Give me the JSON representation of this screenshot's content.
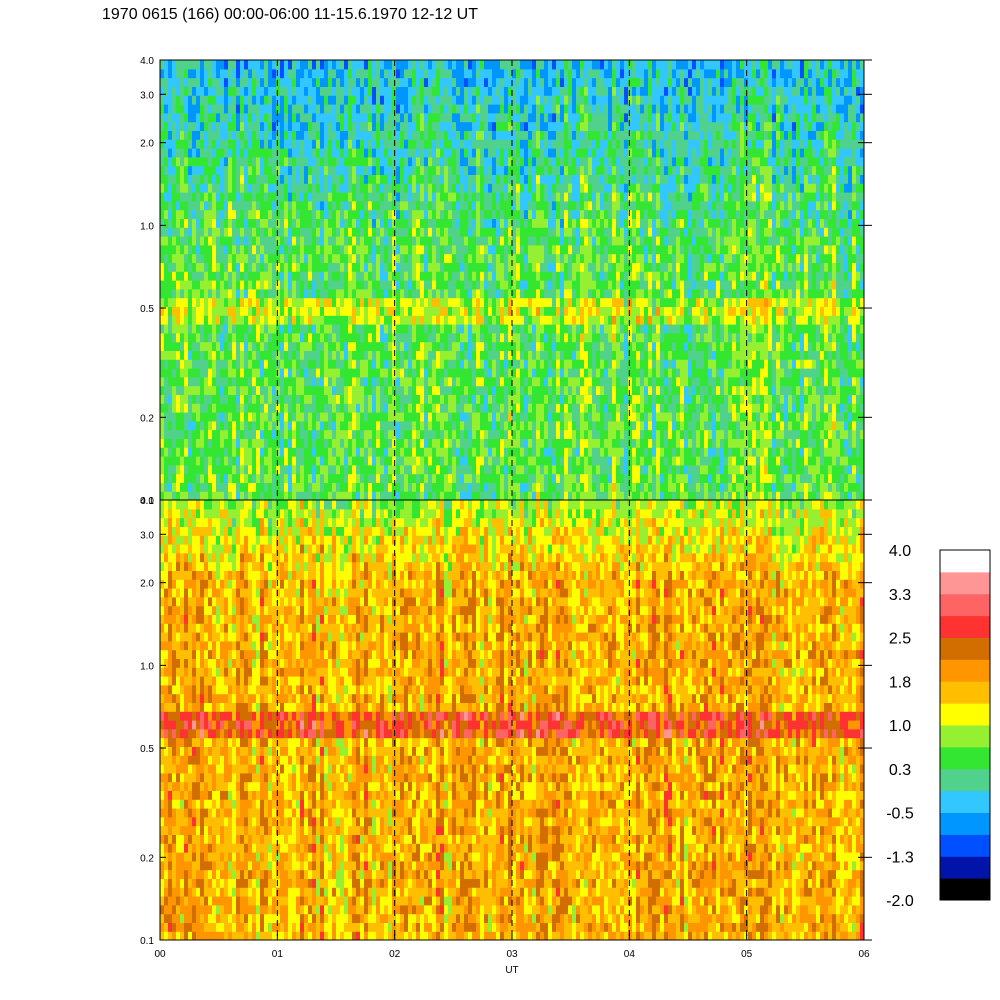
{
  "title": "1970 0615 (166) 00:00-06:00 11-15.6.1970  12-12 UT",
  "chart_data": {
    "type": "heatmap",
    "panels": [
      {
        "name": "upper",
        "y_scale": "log",
        "ylim": [
          0.1,
          4.0
        ],
        "y_ticks": [
          "0.1",
          "0.2",
          "0.5",
          "1.0",
          "2.0",
          "3.0",
          "4.0"
        ],
        "dominant_level": 0.5
      },
      {
        "name": "lower",
        "y_scale": "log",
        "ylim": [
          0.1,
          4.0
        ],
        "y_ticks": [
          "0.1",
          "0.2",
          "0.5",
          "1.0",
          "2.0",
          "3.0",
          "4.0"
        ],
        "dominant_level": 1.7
      }
    ],
    "x_ticks": [
      "00",
      "01",
      "02",
      "03",
      "04",
      "05",
      "06"
    ],
    "xlabel": "UT",
    "xlim": [
      0,
      6
    ],
    "hour_markers": [
      1,
      2,
      3,
      4,
      5
    ],
    "grid": "dashed vertical lines at each hour",
    "colorbar": {
      "labels": [
        "4.0",
        "3.3",
        "2.5",
        "1.8",
        "1.0",
        "0.3",
        "-0.5",
        "-1.3",
        "-2.0"
      ],
      "range": [
        -2.0,
        4.0
      ],
      "colors": [
        "#000000",
        "#0014aa",
        "#0050ff",
        "#0096ff",
        "#32c8ff",
        "#50d28c",
        "#32e632",
        "#96f032",
        "#ffff00",
        "#ffbe00",
        "#ff9600",
        "#d26e00",
        "#ff3232",
        "#ff6464",
        "#ff9696",
        "#ffffff"
      ]
    }
  }
}
